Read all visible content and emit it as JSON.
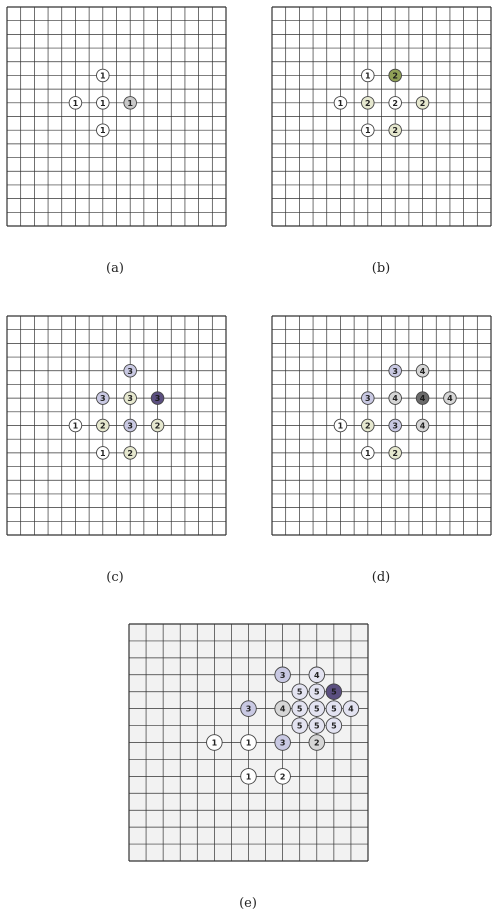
{
  "figure": {
    "captions": [
      "(a)",
      "(b)",
      "(c)",
      "(d)",
      "(e)"
    ]
  },
  "colors": {
    "grid_line": "#333333",
    "board_bg": "#ffffff",
    "board_e_bg": "#f2f2f2",
    "stone_outline": "#444444",
    "white": "#ffffff",
    "lightgray": "#c8c8c8",
    "cream": "#e6e8cf",
    "olive": "#8fa056",
    "lavender": "#c9c9e3",
    "lightlav": "#e3e3f1",
    "gray": "#d6d6d6",
    "darkpurple": "#5b4f80",
    "darkgray": "#6a6a6a"
  },
  "panels": [
    {
      "caption_index": 0,
      "size": 16,
      "stones": [
        {
          "col": 7,
          "row": 5,
          "label": "1",
          "color": "white"
        },
        {
          "col": 5,
          "row": 7,
          "label": "1",
          "color": "white"
        },
        {
          "col": 7,
          "row": 7,
          "label": "1",
          "color": "white"
        },
        {
          "col": 9,
          "row": 7,
          "label": "1",
          "color": "lightgray"
        },
        {
          "col": 7,
          "row": 9,
          "label": "1",
          "color": "white"
        }
      ]
    },
    {
      "caption_index": 1,
      "size": 16,
      "stones": [
        {
          "col": 7,
          "row": 5,
          "label": "1",
          "color": "white"
        },
        {
          "col": 9,
          "row": 5,
          "label": "2",
          "color": "olive"
        },
        {
          "col": 5,
          "row": 7,
          "label": "1",
          "color": "white"
        },
        {
          "col": 7,
          "row": 7,
          "label": "2",
          "color": "cream"
        },
        {
          "col": 9,
          "row": 7,
          "label": "2",
          "color": "white"
        },
        {
          "col": 11,
          "row": 7,
          "label": "2",
          "color": "cream"
        },
        {
          "col": 7,
          "row": 9,
          "label": "1",
          "color": "white"
        },
        {
          "col": 9,
          "row": 9,
          "label": "2",
          "color": "cream"
        }
      ]
    },
    {
      "caption_index": 2,
      "size": 16,
      "stones": [
        {
          "col": 9,
          "row": 4,
          "label": "3",
          "color": "lavender"
        },
        {
          "col": 7,
          "row": 6,
          "label": "3",
          "color": "lavender"
        },
        {
          "col": 9,
          "row": 6,
          "label": "3",
          "color": "cream"
        },
        {
          "col": 11,
          "row": 6,
          "label": "3",
          "color": "darkpurple"
        },
        {
          "col": 5,
          "row": 8,
          "label": "1",
          "color": "white"
        },
        {
          "col": 7,
          "row": 8,
          "label": "2",
          "color": "cream"
        },
        {
          "col": 9,
          "row": 8,
          "label": "3",
          "color": "lavender"
        },
        {
          "col": 11,
          "row": 8,
          "label": "2",
          "color": "cream"
        },
        {
          "col": 7,
          "row": 10,
          "label": "1",
          "color": "white"
        },
        {
          "col": 9,
          "row": 10,
          "label": "2",
          "color": "cream"
        }
      ]
    },
    {
      "caption_index": 3,
      "size": 16,
      "stones": [
        {
          "col": 9,
          "row": 4,
          "label": "3",
          "color": "lavender"
        },
        {
          "col": 11,
          "row": 4,
          "label": "4",
          "color": "gray"
        },
        {
          "col": 7,
          "row": 6,
          "label": "3",
          "color": "lavender"
        },
        {
          "col": 9,
          "row": 6,
          "label": "4",
          "color": "gray"
        },
        {
          "col": 11,
          "row": 6,
          "label": "4",
          "color": "darkgray"
        },
        {
          "col": 13,
          "row": 6,
          "label": "4",
          "color": "gray"
        },
        {
          "col": 5,
          "row": 8,
          "label": "1",
          "color": "white"
        },
        {
          "col": 7,
          "row": 8,
          "label": "2",
          "color": "cream"
        },
        {
          "col": 9,
          "row": 8,
          "label": "3",
          "color": "lavender"
        },
        {
          "col": 11,
          "row": 8,
          "label": "4",
          "color": "gray"
        },
        {
          "col": 7,
          "row": 10,
          "label": "1",
          "color": "white"
        },
        {
          "col": 9,
          "row": 10,
          "label": "2",
          "color": "cream"
        }
      ]
    },
    {
      "caption_index": 4,
      "size": 14,
      "stones": [
        {
          "col": 9,
          "row": 3,
          "label": "3",
          "color": "lavender"
        },
        {
          "col": 11,
          "row": 3,
          "label": "4",
          "color": "lightlav"
        },
        {
          "col": 10,
          "row": 4,
          "label": "5",
          "color": "lightlav"
        },
        {
          "col": 11,
          "row": 4,
          "label": "5",
          "color": "lightlav"
        },
        {
          "col": 12,
          "row": 4,
          "label": "5",
          "color": "darkpurple"
        },
        {
          "col": 7,
          "row": 5,
          "label": "3",
          "color": "lavender"
        },
        {
          "col": 9,
          "row": 5,
          "label": "4",
          "color": "gray"
        },
        {
          "col": 10,
          "row": 5,
          "label": "5",
          "color": "lightlav"
        },
        {
          "col": 11,
          "row": 5,
          "label": "5",
          "color": "lightlav"
        },
        {
          "col": 12,
          "row": 5,
          "label": "5",
          "color": "lightlav"
        },
        {
          "col": 13,
          "row": 5,
          "label": "4",
          "color": "lightlav"
        },
        {
          "col": 10,
          "row": 6,
          "label": "5",
          "color": "lightlav"
        },
        {
          "col": 11,
          "row": 6,
          "label": "5",
          "color": "lightlav"
        },
        {
          "col": 12,
          "row": 6,
          "label": "5",
          "color": "lightlav"
        },
        {
          "col": 5,
          "row": 7,
          "label": "1",
          "color": "white"
        },
        {
          "col": 7,
          "row": 7,
          "label": "1",
          "color": "white"
        },
        {
          "col": 9,
          "row": 7,
          "label": "3",
          "color": "lavender"
        },
        {
          "col": 11,
          "row": 7,
          "label": "2",
          "color": "gray"
        },
        {
          "col": 7,
          "row": 9,
          "label": "1",
          "color": "white"
        },
        {
          "col": 9,
          "row": 9,
          "label": "2",
          "color": "white"
        }
      ]
    }
  ]
}
